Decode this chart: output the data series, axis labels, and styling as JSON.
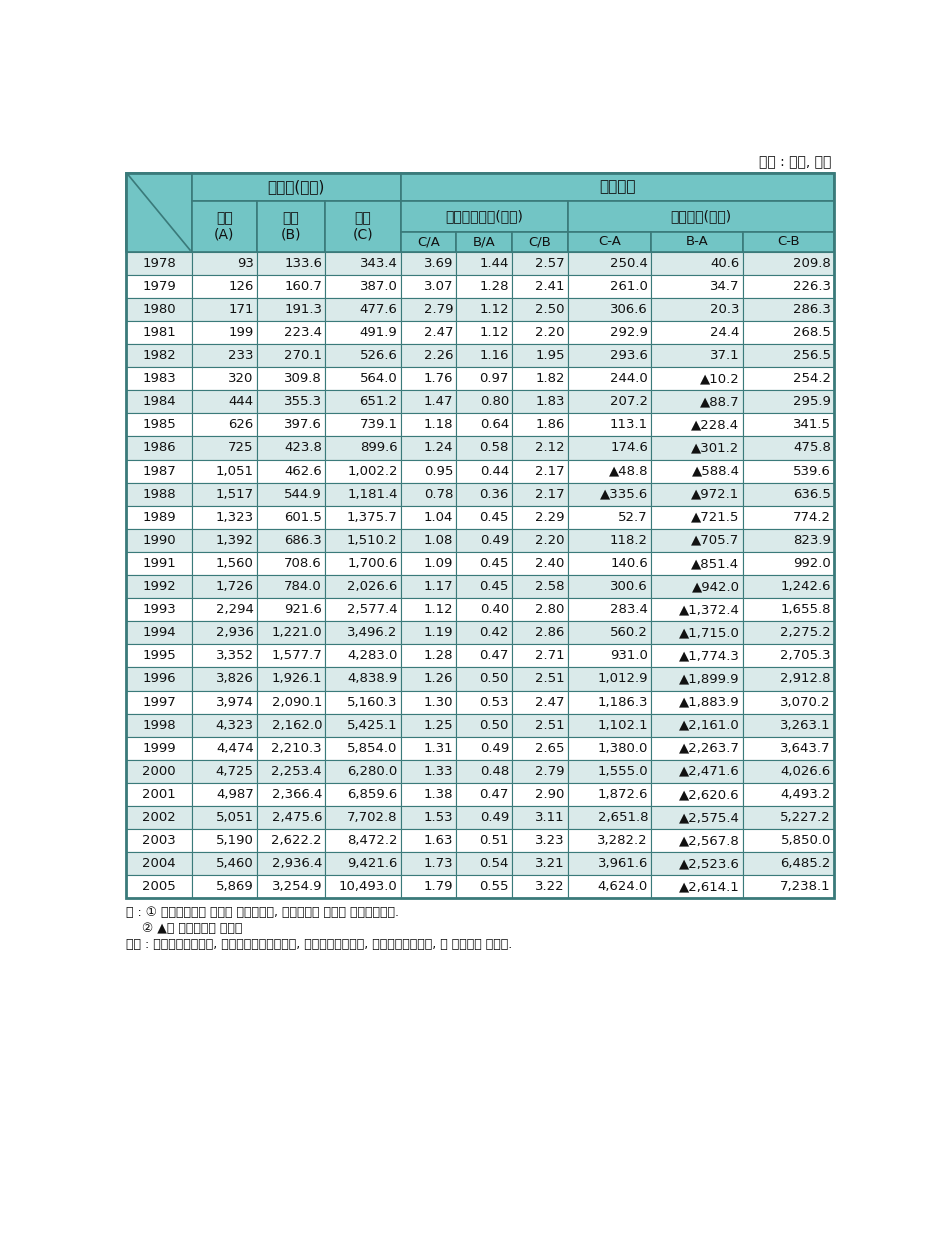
{
  "title_unit": "단위 : 위엔, 배율",
  "rows": [
    [
      "1978",
      "93",
      "133.6",
      "343.4",
      "3.69",
      "1.44",
      "2.57",
      "250.4",
      "40.6",
      "209.8"
    ],
    [
      "1979",
      "126",
      "160.7",
      "387.0",
      "3.07",
      "1.28",
      "2.41",
      "261.0",
      "34.7",
      "226.3"
    ],
    [
      "1980",
      "171",
      "191.3",
      "477.6",
      "2.79",
      "1.12",
      "2.50",
      "306.6",
      "20.3",
      "286.3"
    ],
    [
      "1981",
      "199",
      "223.4",
      "491.9",
      "2.47",
      "1.12",
      "2.20",
      "292.9",
      "24.4",
      "268.5"
    ],
    [
      "1982",
      "233",
      "270.1",
      "526.6",
      "2.26",
      "1.16",
      "1.95",
      "293.6",
      "37.1",
      "256.5"
    ],
    [
      "1983",
      "320",
      "309.8",
      "564.0",
      "1.76",
      "0.97",
      "1.82",
      "244.0",
      "▲10.2",
      "254.2"
    ],
    [
      "1984",
      "444",
      "355.3",
      "651.2",
      "1.47",
      "0.80",
      "1.83",
      "207.2",
      "▲88.7",
      "295.9"
    ],
    [
      "1985",
      "626",
      "397.6",
      "739.1",
      "1.18",
      "0.64",
      "1.86",
      "113.1",
      "▲228.4",
      "341.5"
    ],
    [
      "1986",
      "725",
      "423.8",
      "899.6",
      "1.24",
      "0.58",
      "2.12",
      "174.6",
      "▲301.2",
      "475.8"
    ],
    [
      "1987",
      "1,051",
      "462.6",
      "1,002.2",
      "0.95",
      "0.44",
      "2.17",
      "▲48.8",
      "▲588.4",
      "539.6"
    ],
    [
      "1988",
      "1,517",
      "544.9",
      "1,181.4",
      "0.78",
      "0.36",
      "2.17",
      "▲335.6",
      "▲972.1",
      "636.5"
    ],
    [
      "1989",
      "1,323",
      "601.5",
      "1,375.7",
      "1.04",
      "0.45",
      "2.29",
      "52.7",
      "▲721.5",
      "774.2"
    ],
    [
      "1990",
      "1,392",
      "686.3",
      "1,510.2",
      "1.08",
      "0.49",
      "2.20",
      "118.2",
      "▲705.7",
      "823.9"
    ],
    [
      "1991",
      "1,560",
      "708.6",
      "1,700.6",
      "1.09",
      "0.45",
      "2.40",
      "140.6",
      "▲851.4",
      "992.0"
    ],
    [
      "1992",
      "1,726",
      "784.0",
      "2,026.6",
      "1.17",
      "0.45",
      "2.58",
      "300.6",
      "▲942.0",
      "1,242.6"
    ],
    [
      "1993",
      "2,294",
      "921.6",
      "2,577.4",
      "1.12",
      "0.40",
      "2.80",
      "283.4",
      "▲1,372.4",
      "1,655.8"
    ],
    [
      "1994",
      "2,936",
      "1,221.0",
      "3,496.2",
      "1.19",
      "0.42",
      "2.86",
      "560.2",
      "▲1,715.0",
      "2,275.2"
    ],
    [
      "1995",
      "3,352",
      "1,577.7",
      "4,283.0",
      "1.28",
      "0.47",
      "2.71",
      "931.0",
      "▲1,774.3",
      "2,705.3"
    ],
    [
      "1996",
      "3,826",
      "1,926.1",
      "4,838.9",
      "1.26",
      "0.50",
      "2.51",
      "1,012.9",
      "▲1,899.9",
      "2,912.8"
    ],
    [
      "1997",
      "3,974",
      "2,090.1",
      "5,160.3",
      "1.30",
      "0.53",
      "2.47",
      "1,186.3",
      "▲1,883.9",
      "3,070.2"
    ],
    [
      "1998",
      "4,323",
      "2,162.0",
      "5,425.1",
      "1.25",
      "0.50",
      "2.51",
      "1,102.1",
      "▲2,161.0",
      "3,263.1"
    ],
    [
      "1999",
      "4,474",
      "2,210.3",
      "5,854.0",
      "1.31",
      "0.49",
      "2.65",
      "1,380.0",
      "▲2,263.7",
      "3,643.7"
    ],
    [
      "2000",
      "4,725",
      "2,253.4",
      "6,280.0",
      "1.33",
      "0.48",
      "2.79",
      "1,555.0",
      "▲2,471.6",
      "4,026.6"
    ],
    [
      "2001",
      "4,987",
      "2,366.4",
      "6,859.6",
      "1.38",
      "0.47",
      "2.90",
      "1,872.6",
      "▲2,620.6",
      "4,493.2"
    ],
    [
      "2002",
      "5,051",
      "2,475.6",
      "7,702.8",
      "1.53",
      "0.49",
      "3.11",
      "2,651.8",
      "▲2,575.4",
      "5,227.2"
    ],
    [
      "2003",
      "5,190",
      "2,622.2",
      "8,472.2",
      "1.63",
      "0.51",
      "3.23",
      "3,282.2",
      "▲2,567.8",
      "5,850.0"
    ],
    [
      "2004",
      "5,460",
      "2,936.4",
      "9,421.6",
      "1.73",
      "0.54",
      "3.21",
      "3,961.6",
      "▲2,523.6",
      "6,485.2"
    ],
    [
      "2005",
      "5,869",
      "3,254.9",
      "10,493.0",
      "1.79",
      "0.55",
      "3.22",
      "4,624.0",
      "▲2,614.1",
      "7,238.1"
    ]
  ],
  "note1": "주 : ① 농어촌주민의 소득은 순소득이며, 도시주민의 소득은 가처분소득임.",
  "note2": "    ② ▲는 마이너스를 나타냄",
  "source": "출처 : 『중국어업연감』, 『중국어업통계회편』, 『중국농업연감』, 『중국통계연감』, 각 년도에서 산출함.",
  "header_bg": "#72c5c5",
  "row_bg_light": "#daeaea",
  "row_bg_white": "#ffffff",
  "border_color": "#3a7a7a",
  "text_color": "#111111"
}
